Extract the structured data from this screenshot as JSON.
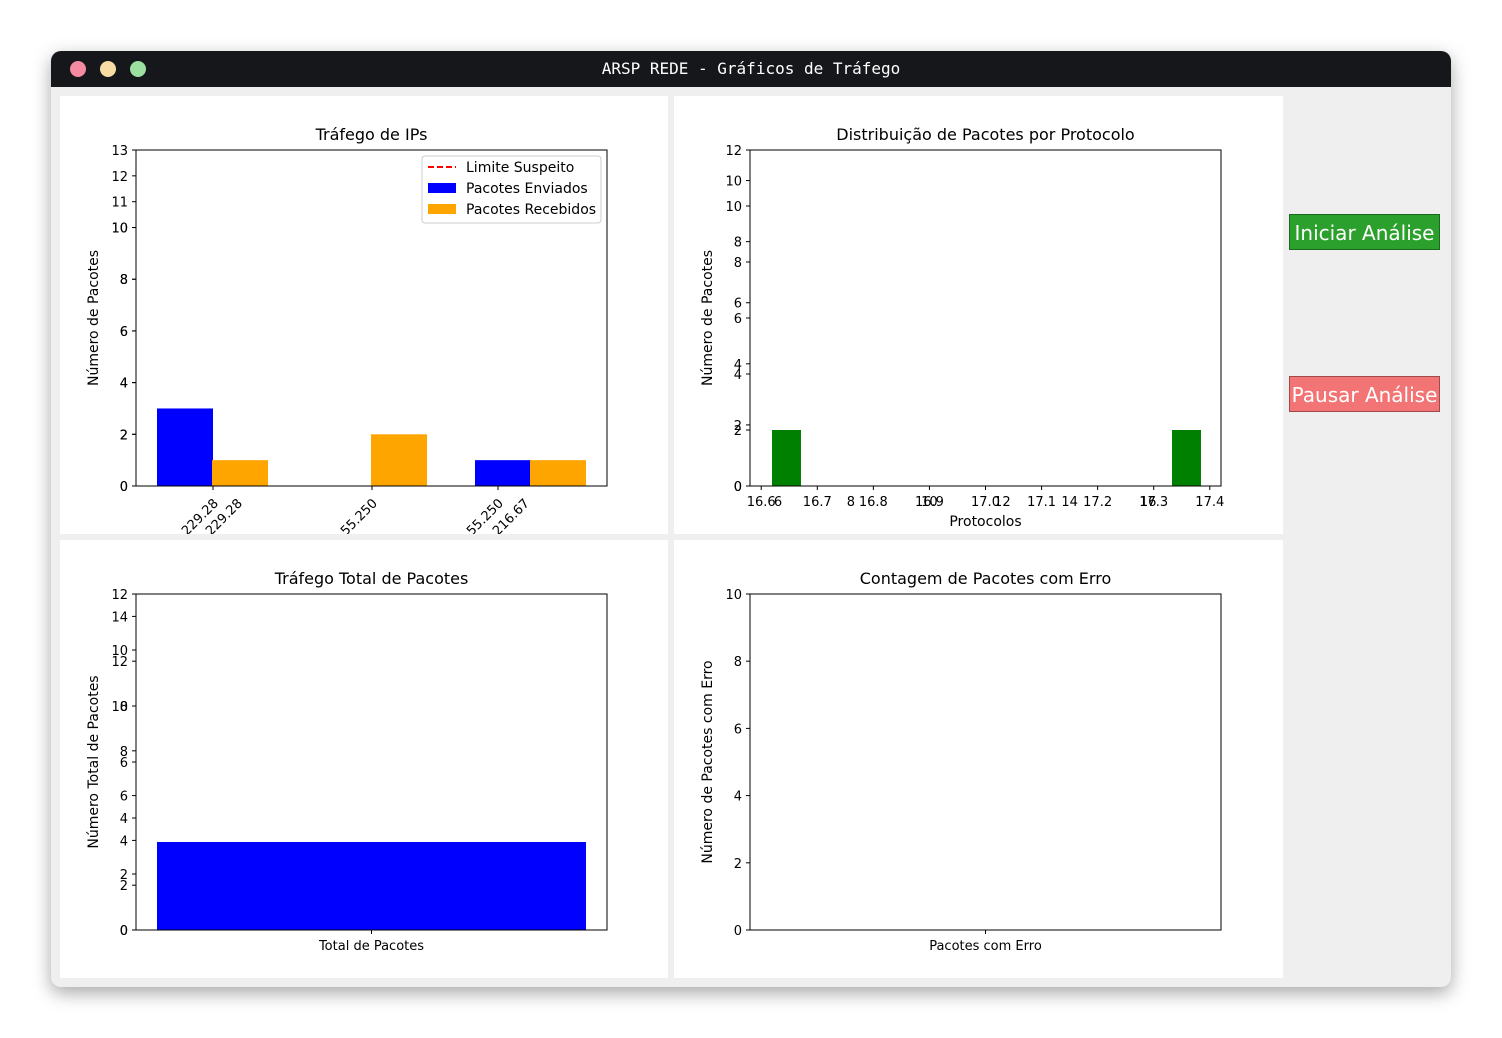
{
  "window": {
    "title": "ARSP REDE - Gráficos de Tráfego",
    "traffic_lights": [
      {
        "name": "close",
        "color": "#f48ba0"
      },
      {
        "name": "minimize",
        "color": "#f8dca4"
      },
      {
        "name": "maximize",
        "color": "#9be0a0"
      }
    ]
  },
  "buttons": {
    "start": {
      "label": "Iniciar Análise",
      "color": "#2ca02c"
    },
    "pause": {
      "label": "Pausar Análise",
      "color": "#f27474"
    }
  },
  "chart_data": [
    {
      "type": "bar",
      "title": "Tráfego de IPs",
      "ylabel": "Número de Pacotes",
      "xlabel": "",
      "ylim": [
        0,
        13
      ],
      "y_ticks": [
        0,
        2,
        4,
        6,
        8,
        10,
        12
      ],
      "y_ticks_overlay": [
        0,
        2,
        4,
        6,
        8,
        10,
        11,
        13
      ],
      "categories": [
        ".229.28",
        ".229.28",
        ".55.250",
        ".55.250",
        ".216.67"
      ],
      "category_positions": [
        0.5,
        0.76,
        1.5,
        2.5,
        2.76
      ],
      "series": [
        {
          "name": "Pacotes Enviados",
          "color": "#0000ff",
          "x": [
            0,
            2
          ],
          "values": [
            3,
            1
          ]
        },
        {
          "name": "Pacotes Recebidos",
          "color": "#ffa500",
          "x": [
            0.5,
            1.5,
            2.5
          ],
          "values": [
            1,
            2,
            1
          ]
        }
      ],
      "reference_line": {
        "name": "Limite Suspeito",
        "color": "#ff0000",
        "style": "dashed"
      },
      "xlim": [
        -0.2,
        4.2
      ],
      "legend": "top-right"
    },
    {
      "type": "bar",
      "title": "Distribuição de Pacotes por Protocolo",
      "ylabel": "Número de Pacotes",
      "xlabel": "Protocolos",
      "ylim": [
        0,
        12
      ],
      "y_ticks": [
        0,
        2,
        4,
        6,
        8,
        10,
        12
      ],
      "y_ticks_overlay": [
        0,
        2,
        4,
        6,
        8,
        10
      ],
      "y_ticks_overlay_max": 11,
      "x_ticks": [
        16.6,
        16.7,
        16.8,
        16.9,
        17.0,
        17.1,
        17.2,
        17.3,
        17.4
      ],
      "x_ticks_labels": [
        "16.6",
        "16.7",
        "16.8",
        "16.9",
        "17.0",
        "17.1",
        "17.2",
        "17.3",
        "17.4"
      ],
      "x_ticks_overlay": [
        "6",
        "8",
        "10",
        "12",
        "14",
        "16"
      ],
      "x_ticks_overlay_positions": [
        16.63,
        16.76,
        16.9,
        17.03,
        17.15,
        17.29
      ],
      "xlim": [
        16.58,
        17.42
      ],
      "series": [
        {
          "name": "",
          "color": "#008000",
          "x": [
            16.6,
            17.35
          ],
          "values": [
            2,
            2
          ],
          "width": 0.055
        }
      ]
    },
    {
      "type": "bar",
      "title": "Tráfego Total de Pacotes",
      "ylabel": "Número Total de Pacotes",
      "xlabel": "",
      "ylim": [
        0,
        12
      ],
      "y_ticks": [
        0,
        2,
        4,
        6,
        8,
        10,
        12
      ],
      "y_ticks_overlay": [
        0,
        2,
        4,
        6,
        8,
        10,
        12,
        14
      ],
      "y_ticks_overlay_max": 15,
      "categories": [
        "Total de Pacotes"
      ],
      "series": [
        {
          "name": "",
          "color": "#0000ff",
          "values": [
            4
          ]
        }
      ]
    },
    {
      "type": "bar",
      "title": "Contagem de Pacotes com Erro",
      "ylabel": "Número de Pacotes com Erro",
      "xlabel": "",
      "ylim": [
        0,
        10
      ],
      "y_ticks": [
        0,
        2,
        4,
        6,
        8,
        10
      ],
      "categories": [
        "Pacotes com Erro"
      ],
      "series": [
        {
          "name": "",
          "color": "#ff0000",
          "values": [
            0
          ]
        }
      ]
    }
  ]
}
